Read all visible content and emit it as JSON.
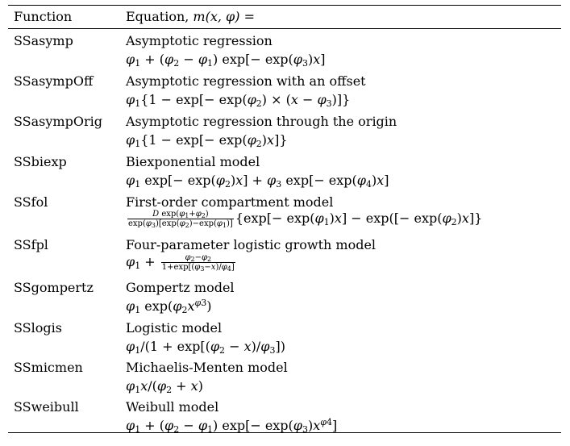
{
  "header": {
    "col1": "Function",
    "col2_prefix": "Equation, ",
    "col2_math": "m(x, φ) ="
  },
  "rows": [
    {
      "name": "SSasymp",
      "desc": "Asymptotic regression"
    },
    {
      "name": "SSasympOff",
      "desc": "Asymptotic regression with an offset"
    },
    {
      "name": "SSasympOrig",
      "desc": "Asymptotic regression through the origin"
    },
    {
      "name": "SSbiexp",
      "desc": "Biexponential model"
    },
    {
      "name": "SSfol",
      "desc": "First-order compartment model"
    },
    {
      "name": "SSfpl",
      "desc": "Four-parameter logistic growth model"
    },
    {
      "name": "SSgompertz",
      "desc": "Gompertz model"
    },
    {
      "name": "SSlogis",
      "desc": "Logistic model"
    },
    {
      "name": "SSmicmen",
      "desc": "Michaelis-Menten model"
    },
    {
      "name": "SSweibull",
      "desc": "Weibull model"
    }
  ]
}
